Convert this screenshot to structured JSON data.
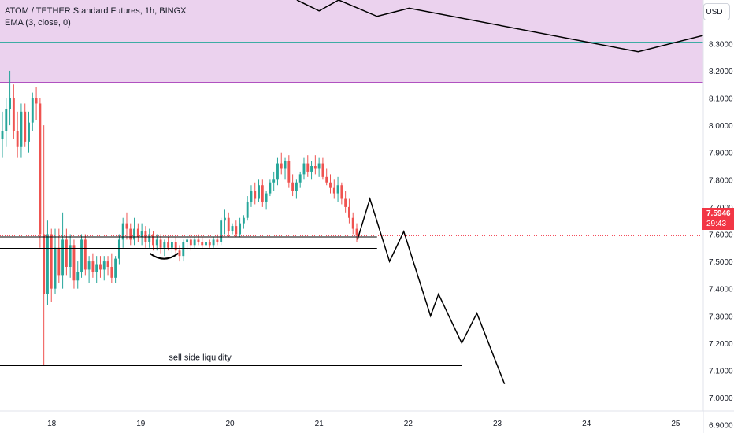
{
  "legend": {
    "symbol": "ATOM / TETHER Standard Futures, 1h, BINGX",
    "indicator": "EMA (3, close, 0)"
  },
  "currency": "USDT",
  "last_price": {
    "value": "7.5946",
    "countdown": "29:43",
    "color": "#f23645"
  },
  "colors": {
    "up": "#26a69a",
    "down": "#ef5350",
    "zone_fill": "#ebd2ee",
    "zone_line": "#9c27b0",
    "ema_line": "#26a69a",
    "drawing": "#000000"
  },
  "chart_data": {
    "type": "candlestick",
    "title": "ATOM / TETHER Standard Futures, 1h, BINGX",
    "timeframe": "1h",
    "x_ticks": [
      "18",
      "19",
      "20",
      "21",
      "22",
      "23",
      "24",
      "25"
    ],
    "y_ticks": [
      "6.9000",
      "7.0000",
      "7.1000",
      "7.2000",
      "7.3000",
      "7.4000",
      "7.5000",
      "7.6000",
      "7.7000",
      "7.8000",
      "7.9000",
      "8.0000",
      "8.1000",
      "8.2000",
      "8.3000"
    ],
    "ylim": [
      6.87,
      8.46
    ],
    "xlim": [
      17.42,
      25.31
    ],
    "last_price": 7.5946,
    "supply_zone": {
      "from": 8.157,
      "to": 8.46
    },
    "ema_level": 8.305,
    "levels": [
      {
        "price": 7.59,
        "from": 17.36,
        "to": 21.65
      },
      {
        "price": 7.548,
        "from": 17.36,
        "to": 21.65
      },
      {
        "price": 7.117,
        "from": 17.26,
        "to": 22.6,
        "label": "sell side liquidity"
      }
    ],
    "swing_mark": {
      "x_from": 19.1,
      "x_to": 19.42,
      "price": 7.53
    },
    "projection_path": [
      [
        21.43,
        7.58
      ],
      [
        21.57,
        7.73
      ],
      [
        21.79,
        7.5
      ],
      [
        21.95,
        7.61
      ],
      [
        22.25,
        7.3
      ],
      [
        22.34,
        7.38
      ],
      [
        22.6,
        7.2
      ],
      [
        22.77,
        7.31
      ],
      [
        23.08,
        7.05
      ]
    ],
    "upper_path": [
      [
        20.75,
        8.46
      ],
      [
        21.0,
        8.42
      ],
      [
        21.22,
        8.46
      ],
      [
        21.65,
        8.4
      ],
      [
        22.01,
        8.43
      ],
      [
        24.58,
        8.27
      ],
      [
        25.31,
        8.33
      ]
    ],
    "candles": [
      [
        7.95,
        8.05,
        7.88,
        7.98
      ],
      [
        7.98,
        8.1,
        7.92,
        8.06
      ],
      [
        8.06,
        8.2,
        8.0,
        8.1
      ],
      [
        8.1,
        8.15,
        7.95,
        7.98
      ],
      [
        7.98,
        8.05,
        7.88,
        7.92
      ],
      [
        7.92,
        8.08,
        7.88,
        8.05
      ],
      [
        8.05,
        8.08,
        7.92,
        7.94
      ],
      [
        7.94,
        8.05,
        7.9,
        8.01
      ],
      [
        8.01,
        8.12,
        7.98,
        8.1
      ],
      [
        8.1,
        8.14,
        8.02,
        8.08
      ],
      [
        8.08,
        8.1,
        7.55,
        7.6
      ],
      [
        7.6,
        8.0,
        7.12,
        7.38
      ],
      [
        7.38,
        7.65,
        7.34,
        7.6
      ],
      [
        7.6,
        7.62,
        7.35,
        7.4
      ],
      [
        7.4,
        7.62,
        7.38,
        7.55
      ],
      [
        7.55,
        7.62,
        7.42,
        7.45
      ],
      [
        7.45,
        7.68,
        7.4,
        7.58
      ],
      [
        7.58,
        7.62,
        7.45,
        7.48
      ],
      [
        7.48,
        7.6,
        7.44,
        7.56
      ],
      [
        7.56,
        7.58,
        7.4,
        7.43
      ],
      [
        7.43,
        7.5,
        7.4,
        7.46
      ],
      [
        7.46,
        7.6,
        7.44,
        7.58
      ],
      [
        7.58,
        7.6,
        7.45,
        7.47
      ],
      [
        7.47,
        7.52,
        7.42,
        7.5
      ],
      [
        7.5,
        7.53,
        7.44,
        7.46
      ],
      [
        7.46,
        7.52,
        7.42,
        7.49
      ],
      [
        7.49,
        7.52,
        7.44,
        7.47
      ],
      [
        7.47,
        7.52,
        7.43,
        7.5
      ],
      [
        7.5,
        7.52,
        7.45,
        7.48
      ],
      [
        7.48,
        7.53,
        7.42,
        7.44
      ],
      [
        7.44,
        7.52,
        7.42,
        7.51
      ],
      [
        7.51,
        7.6,
        7.49,
        7.58
      ],
      [
        7.58,
        7.66,
        7.55,
        7.64
      ],
      [
        7.64,
        7.68,
        7.58,
        7.62
      ],
      [
        7.62,
        7.64,
        7.56,
        7.58
      ],
      [
        7.58,
        7.66,
        7.56,
        7.62
      ],
      [
        7.62,
        7.64,
        7.57,
        7.59
      ],
      [
        7.59,
        7.64,
        7.56,
        7.61
      ],
      [
        7.61,
        7.63,
        7.55,
        7.57
      ],
      [
        7.57,
        7.62,
        7.55,
        7.6
      ],
      [
        7.6,
        7.61,
        7.54,
        7.56
      ],
      [
        7.56,
        7.6,
        7.54,
        7.58
      ],
      [
        7.58,
        7.6,
        7.53,
        7.55
      ],
      [
        7.55,
        7.58,
        7.52,
        7.57
      ],
      [
        7.57,
        7.59,
        7.54,
        7.55
      ],
      [
        7.55,
        7.58,
        7.53,
        7.57
      ],
      [
        7.57,
        7.59,
        7.53,
        7.54
      ],
      [
        7.54,
        7.56,
        7.5,
        7.52
      ],
      [
        7.52,
        7.58,
        7.5,
        7.57
      ],
      [
        7.57,
        7.6,
        7.54,
        7.58
      ],
      [
        7.58,
        7.6,
        7.54,
        7.56
      ],
      [
        7.56,
        7.59,
        7.55,
        7.58
      ],
      [
        7.58,
        7.6,
        7.56,
        7.57
      ],
      [
        7.57,
        7.59,
        7.55,
        7.56
      ],
      [
        7.56,
        7.58,
        7.55,
        7.57
      ],
      [
        7.57,
        7.58,
        7.55,
        7.56
      ],
      [
        7.56,
        7.59,
        7.55,
        7.58
      ],
      [
        7.58,
        7.6,
        7.56,
        7.57
      ],
      [
        7.57,
        7.66,
        7.56,
        7.65
      ],
      [
        7.65,
        7.69,
        7.6,
        7.66
      ],
      [
        7.66,
        7.68,
        7.59,
        7.61
      ],
      [
        7.61,
        7.64,
        7.6,
        7.63
      ],
      [
        7.63,
        7.65,
        7.59,
        7.6
      ],
      [
        7.6,
        7.66,
        7.59,
        7.64
      ],
      [
        7.64,
        7.67,
        7.62,
        7.66
      ],
      [
        7.66,
        7.74,
        7.65,
        7.72
      ],
      [
        7.72,
        7.78,
        7.7,
        7.76
      ],
      [
        7.76,
        7.79,
        7.71,
        7.73
      ],
      [
        7.73,
        7.8,
        7.72,
        7.78
      ],
      [
        7.78,
        7.8,
        7.7,
        7.72
      ],
      [
        7.72,
        7.76,
        7.69,
        7.75
      ],
      [
        7.75,
        7.8,
        7.74,
        7.79
      ],
      [
        7.79,
        7.83,
        7.76,
        7.8
      ],
      [
        7.8,
        7.88,
        7.78,
        7.86
      ],
      [
        7.86,
        7.9,
        7.82,
        7.84
      ],
      [
        7.84,
        7.88,
        7.8,
        7.87
      ],
      [
        7.87,
        7.89,
        7.77,
        7.79
      ],
      [
        7.79,
        7.82,
        7.74,
        7.76
      ],
      [
        7.76,
        7.8,
        7.73,
        7.79
      ],
      [
        7.79,
        7.83,
        7.77,
        7.82
      ],
      [
        7.82,
        7.88,
        7.8,
        7.86
      ],
      [
        7.86,
        7.89,
        7.81,
        7.83
      ],
      [
        7.83,
        7.87,
        7.8,
        7.85
      ],
      [
        7.85,
        7.89,
        7.82,
        7.84
      ],
      [
        7.84,
        7.88,
        7.81,
        7.86
      ],
      [
        7.86,
        7.88,
        7.8,
        7.81
      ],
      [
        7.81,
        7.84,
        7.78,
        7.79
      ],
      [
        7.79,
        7.82,
        7.75,
        7.77
      ],
      [
        7.77,
        7.8,
        7.73,
        7.75
      ],
      [
        7.75,
        7.81,
        7.72,
        7.78
      ],
      [
        7.78,
        7.79,
        7.71,
        7.73
      ],
      [
        7.73,
        7.76,
        7.68,
        7.7
      ],
      [
        7.7,
        7.73,
        7.64,
        7.66
      ],
      [
        7.66,
        7.68,
        7.6,
        7.62
      ],
      [
        7.62,
        7.64,
        7.57,
        7.5946
      ]
    ]
  },
  "annotations": {
    "liquidity_label": "sell side liquidity"
  }
}
